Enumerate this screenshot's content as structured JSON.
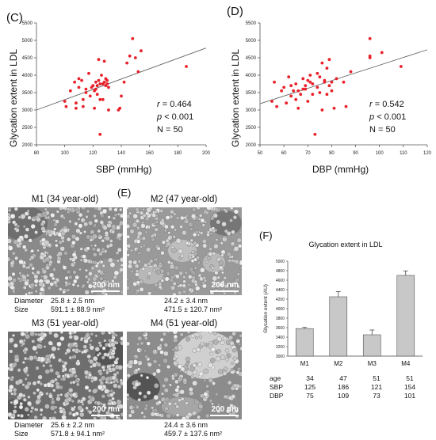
{
  "panel_c": {
    "label": "(C)",
    "ylabel": "Glycation extent in LDL",
    "xlabel": "SBP (mmHg)",
    "stat_r_name": "r",
    "stat_r_value": "= 0.464",
    "stat_p_name": "p",
    "stat_p_value": "< 0.001",
    "stat_n": "N = 50"
  },
  "panel_d": {
    "label": "(D)",
    "ylabel": "Glycation extent in LDL",
    "xlabel": "DBP (mmHg)",
    "stat_r_name": "r",
    "stat_r_value": "=  0.542",
    "stat_p_name": "p",
    "stat_p_value": "< 0.001",
    "stat_n": "N = 50"
  },
  "panel_e": {
    "label": "(E)",
    "scale_bar": "200 nm",
    "m1": {
      "title": "M1 (34 year-old)",
      "diam_label": "Diameter",
      "size_label": "Size",
      "diam": "25.8 ± 2.5 nm",
      "size": "591.1 ± 88.9 nm²"
    },
    "m2": {
      "title": "M2 (47 year-old)",
      "diam": "24.2 ± 3.4 nm",
      "size": "471.5 ± 120.7 nm²"
    },
    "m3": {
      "title": "M3 (51 year-old)",
      "diam_label": "Diameter",
      "size_label": "Size",
      "diam": "25.6 ± 2.2 nm",
      "size": "571.8 ± 94.1 nm²"
    },
    "m4": {
      "title": "M4 (51 year-old)",
      "diam": "24.4 ± 3.6 nm",
      "size": "459.7 ± 137.6 nm²"
    }
  },
  "panel_f": {
    "label": "(F)",
    "table": {
      "rows": [
        {
          "label": "age",
          "values": [
            "34",
            "47",
            "51",
            "51"
          ]
        },
        {
          "label": "SBP",
          "values": [
            "125",
            "186",
            "121",
            "154"
          ]
        },
        {
          "label": "DBP",
          "values": [
            "75",
            "109",
            "73",
            "101"
          ]
        }
      ]
    }
  },
  "chart_data": [
    {
      "type": "scatter",
      "title": "",
      "xlabel": "SBP (mmHg)",
      "ylabel": "Glycation extent in LDL",
      "xlim": [
        80,
        200
      ],
      "ylim": [
        2000,
        5500
      ],
      "xticks": [
        80,
        100,
        120,
        140,
        160,
        180,
        200
      ],
      "yticks": [
        2000,
        2500,
        3000,
        3500,
        4000,
        4500,
        5000,
        5500
      ],
      "grid": false,
      "point_color": "#e8212a",
      "points": [
        [
          100,
          3250
        ],
        [
          101,
          3100
        ],
        [
          104,
          3550
        ],
        [
          107,
          3800
        ],
        [
          108,
          3200
        ],
        [
          108,
          3050
        ],
        [
          110,
          3650
        ],
        [
          110,
          3900
        ],
        [
          112,
          3850
        ],
        [
          113,
          3100
        ],
        [
          113,
          3300
        ],
        [
          115,
          3500
        ],
        [
          115,
          3600
        ],
        [
          117,
          4050
        ],
        [
          118,
          3400
        ],
        [
          119,
          3650
        ],
        [
          120,
          3700
        ],
        [
          121,
          3050
        ],
        [
          121,
          3550
        ],
        [
          122,
          3600
        ],
        [
          122,
          3800
        ],
        [
          123,
          3450
        ],
        [
          123,
          3700
        ],
        [
          124,
          3850
        ],
        [
          124,
          4450
        ],
        [
          125,
          3750
        ],
        [
          125,
          3300
        ],
        [
          125,
          2300
        ],
        [
          126,
          4000
        ],
        [
          127,
          3750
        ],
        [
          127,
          3300
        ],
        [
          128,
          3800
        ],
        [
          128,
          4400
        ],
        [
          129,
          3700
        ],
        [
          129,
          3900
        ],
        [
          130,
          3750
        ],
        [
          130,
          3850
        ],
        [
          131,
          3000
        ],
        [
          131,
          3650
        ],
        [
          138,
          3000
        ],
        [
          139,
          3050
        ],
        [
          140,
          3400
        ],
        [
          142,
          3800
        ],
        [
          144,
          4350
        ],
        [
          146,
          4550
        ],
        [
          148,
          5050
        ],
        [
          150,
          4500
        ],
        [
          152,
          4100
        ],
        [
          154,
          4700
        ],
        [
          186,
          4250
        ]
      ],
      "trendline": [
        [
          80,
          3000
        ],
        [
          200,
          4780
        ]
      ],
      "annotations": [
        "r = 0.464",
        "p < 0.001",
        "N = 50"
      ]
    },
    {
      "type": "scatter",
      "title": "",
      "xlabel": "DBP (mmHg)",
      "ylabel": "Glycation extent in LDL",
      "xlim": [
        50,
        120
      ],
      "ylim": [
        2000,
        5500
      ],
      "xticks": [
        50,
        60,
        70,
        80,
        90,
        100,
        110,
        120
      ],
      "yticks": [
        2000,
        2500,
        3000,
        3500,
        4000,
        4500,
        5000,
        5500
      ],
      "grid": false,
      "point_color": "#e8212a",
      "points": [
        [
          55,
          3250
        ],
        [
          56,
          3800
        ],
        [
          57,
          3100
        ],
        [
          59,
          3550
        ],
        [
          60,
          3650
        ],
        [
          61,
          3200
        ],
        [
          62,
          3950
        ],
        [
          63,
          3400
        ],
        [
          63,
          3700
        ],
        [
          64,
          3550
        ],
        [
          65,
          3750
        ],
        [
          65,
          3300
        ],
        [
          66,
          3550
        ],
        [
          66,
          3050
        ],
        [
          67,
          3450
        ],
        [
          68,
          3600
        ],
        [
          68,
          3900
        ],
        [
          69,
          3700
        ],
        [
          69,
          3600
        ],
        [
          70,
          3850
        ],
        [
          70,
          3250
        ],
        [
          71,
          4000
        ],
        [
          71,
          3800
        ],
        [
          72,
          3450
        ],
        [
          72,
          3750
        ],
        [
          73,
          2300
        ],
        [
          74,
          3650
        ],
        [
          74,
          4050
        ],
        [
          75,
          3500
        ],
        [
          75,
          3950
        ],
        [
          76,
          4350
        ],
        [
          76,
          3000
        ],
        [
          77,
          3800
        ],
        [
          77,
          3850
        ],
        [
          78,
          3450
        ],
        [
          78,
          4200
        ],
        [
          79,
          3700
        ],
        [
          79,
          4450
        ],
        [
          80,
          3800
        ],
        [
          80,
          3550
        ],
        [
          81,
          3050
        ],
        [
          82,
          3900
        ],
        [
          85,
          3800
        ],
        [
          86,
          3100
        ],
        [
          88,
          4100
        ],
        [
          96,
          5050
        ],
        [
          96,
          4550
        ],
        [
          96,
          4500
        ],
        [
          101,
          4650
        ],
        [
          109,
          4250
        ]
      ],
      "trendline": [
        [
          50,
          3180
        ],
        [
          120,
          4730
        ]
      ],
      "annotations": [
        "r = 0.542",
        "p < 0.001",
        "N = 50"
      ]
    },
    {
      "type": "bar",
      "title": "Glycation extent in  LDL",
      "xlabel": "",
      "ylabel": "Glycation extent (AU)",
      "categories": [
        "M1",
        "M2",
        "M3",
        "M4"
      ],
      "values": [
        3580,
        4250,
        3450,
        4700
      ],
      "errors": [
        25,
        110,
        100,
        95
      ],
      "ylim": [
        3000,
        5000
      ],
      "yticks": [
        3000,
        3200,
        3400,
        3600,
        3800,
        4000,
        4200,
        4400,
        4600,
        4800,
        5000
      ],
      "bar_color": "#c8c8c8",
      "grid": false
    }
  ]
}
